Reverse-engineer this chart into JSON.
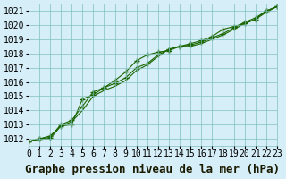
{
  "title": "Graphe pression niveau de la mer (hPa)",
  "background_color": "#d6eef8",
  "grid_color": "#7fbfbf",
  "line_color": "#1a6600",
  "x_min": 0,
  "x_max": 23,
  "y_min": 1011.5,
  "y_max": 1021.5,
  "yticks": [
    1012,
    1013,
    1014,
    1015,
    1016,
    1017,
    1018,
    1019,
    1020,
    1021
  ],
  "xticks": [
    0,
    1,
    2,
    3,
    4,
    5,
    6,
    7,
    8,
    9,
    10,
    11,
    12,
    13,
    14,
    15,
    16,
    17,
    18,
    19,
    20,
    21,
    22,
    23
  ],
  "series1": [
    [
      0,
      1011.8
    ],
    [
      1,
      1012.0
    ],
    [
      2,
      1012.2
    ],
    [
      3,
      1012.9
    ],
    [
      4,
      1013.0
    ],
    [
      5,
      1014.8
    ],
    [
      6,
      1015.1
    ],
    [
      7,
      1015.6
    ],
    [
      8,
      1016.1
    ],
    [
      9,
      1016.7
    ],
    [
      10,
      1017.5
    ],
    [
      11,
      1017.9
    ],
    [
      12,
      1018.1
    ],
    [
      13,
      1018.2
    ],
    [
      14,
      1018.5
    ],
    [
      15,
      1018.7
    ],
    [
      16,
      1018.9
    ],
    [
      17,
      1019.2
    ],
    [
      18,
      1019.7
    ],
    [
      19,
      1019.9
    ],
    [
      20,
      1020.1
    ],
    [
      21,
      1020.4
    ],
    [
      22,
      1021.0
    ],
    [
      23,
      1021.3
    ]
  ],
  "series2": [
    [
      0,
      1011.8
    ],
    [
      1,
      1012.0
    ],
    [
      2,
      1012.1
    ],
    [
      3,
      1013.0
    ],
    [
      4,
      1013.3
    ],
    [
      5,
      1014.3
    ],
    [
      6,
      1015.3
    ],
    [
      7,
      1015.6
    ],
    [
      8,
      1015.9
    ],
    [
      9,
      1016.3
    ],
    [
      10,
      1017.0
    ],
    [
      11,
      1017.3
    ],
    [
      12,
      1017.9
    ],
    [
      13,
      1018.3
    ],
    [
      14,
      1018.5
    ],
    [
      15,
      1018.6
    ],
    [
      16,
      1018.8
    ],
    [
      17,
      1019.1
    ],
    [
      18,
      1019.4
    ],
    [
      19,
      1019.8
    ],
    [
      20,
      1020.2
    ],
    [
      21,
      1020.5
    ],
    [
      22,
      1021.0
    ],
    [
      23,
      1021.3
    ]
  ],
  "series3": [
    [
      0,
      1011.8
    ],
    [
      1,
      1012.0
    ],
    [
      2,
      1012.0
    ],
    [
      3,
      1012.9
    ],
    [
      4,
      1013.2
    ],
    [
      5,
      1014.0
    ],
    [
      6,
      1015.0
    ],
    [
      7,
      1015.4
    ],
    [
      8,
      1015.7
    ],
    [
      9,
      1016.1
    ],
    [
      10,
      1016.8
    ],
    [
      11,
      1017.2
    ],
    [
      12,
      1017.8
    ],
    [
      13,
      1018.3
    ],
    [
      14,
      1018.5
    ],
    [
      15,
      1018.5
    ],
    [
      16,
      1018.7
    ],
    [
      17,
      1019.0
    ],
    [
      18,
      1019.3
    ],
    [
      19,
      1019.7
    ],
    [
      20,
      1020.1
    ],
    [
      21,
      1020.4
    ],
    [
      22,
      1020.9
    ],
    [
      23,
      1021.3
    ]
  ],
  "title_fontsize": 9,
  "tick_fontsize": 7
}
